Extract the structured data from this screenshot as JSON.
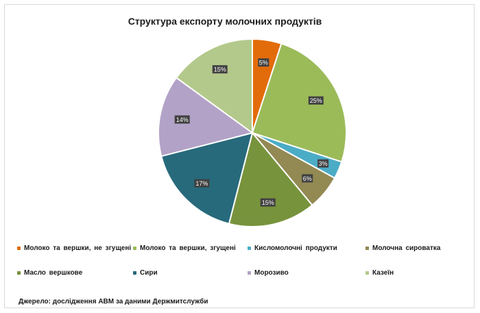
{
  "chart_data": {
    "type": "pie",
    "title": "Структура експорту молочних продуктів",
    "slices": [
      {
        "name": "Молоко та вершки, не згущені",
        "value": 5,
        "label": "5%",
        "color": "#e36c0a"
      },
      {
        "name": "Молоко та вершки, згущені",
        "value": 25,
        "label": "25%",
        "color": "#9bbb59"
      },
      {
        "name": "Кисломолочні продукти",
        "value": 3,
        "label": "3%",
        "color": "#4bacc6"
      },
      {
        "name": "Молочна сироватка",
        "value": 6,
        "label": "6%",
        "color": "#938953"
      },
      {
        "name": "Масло вершкове",
        "value": 15,
        "label": "15%",
        "color": "#77933c"
      },
      {
        "name": "Сири",
        "value": 17,
        "label": "17%",
        "color": "#276a7c"
      },
      {
        "name": "Морозиво",
        "value": 14,
        "label": "14%",
        "color": "#b3a2c7"
      },
      {
        "name": "Казеїн",
        "value": 15,
        "label": "15%",
        "color": "#b3c98b"
      }
    ],
    "legend_position": "bottom"
  },
  "source": "Джерело: дослідження АВМ за даними Держмитслужби"
}
